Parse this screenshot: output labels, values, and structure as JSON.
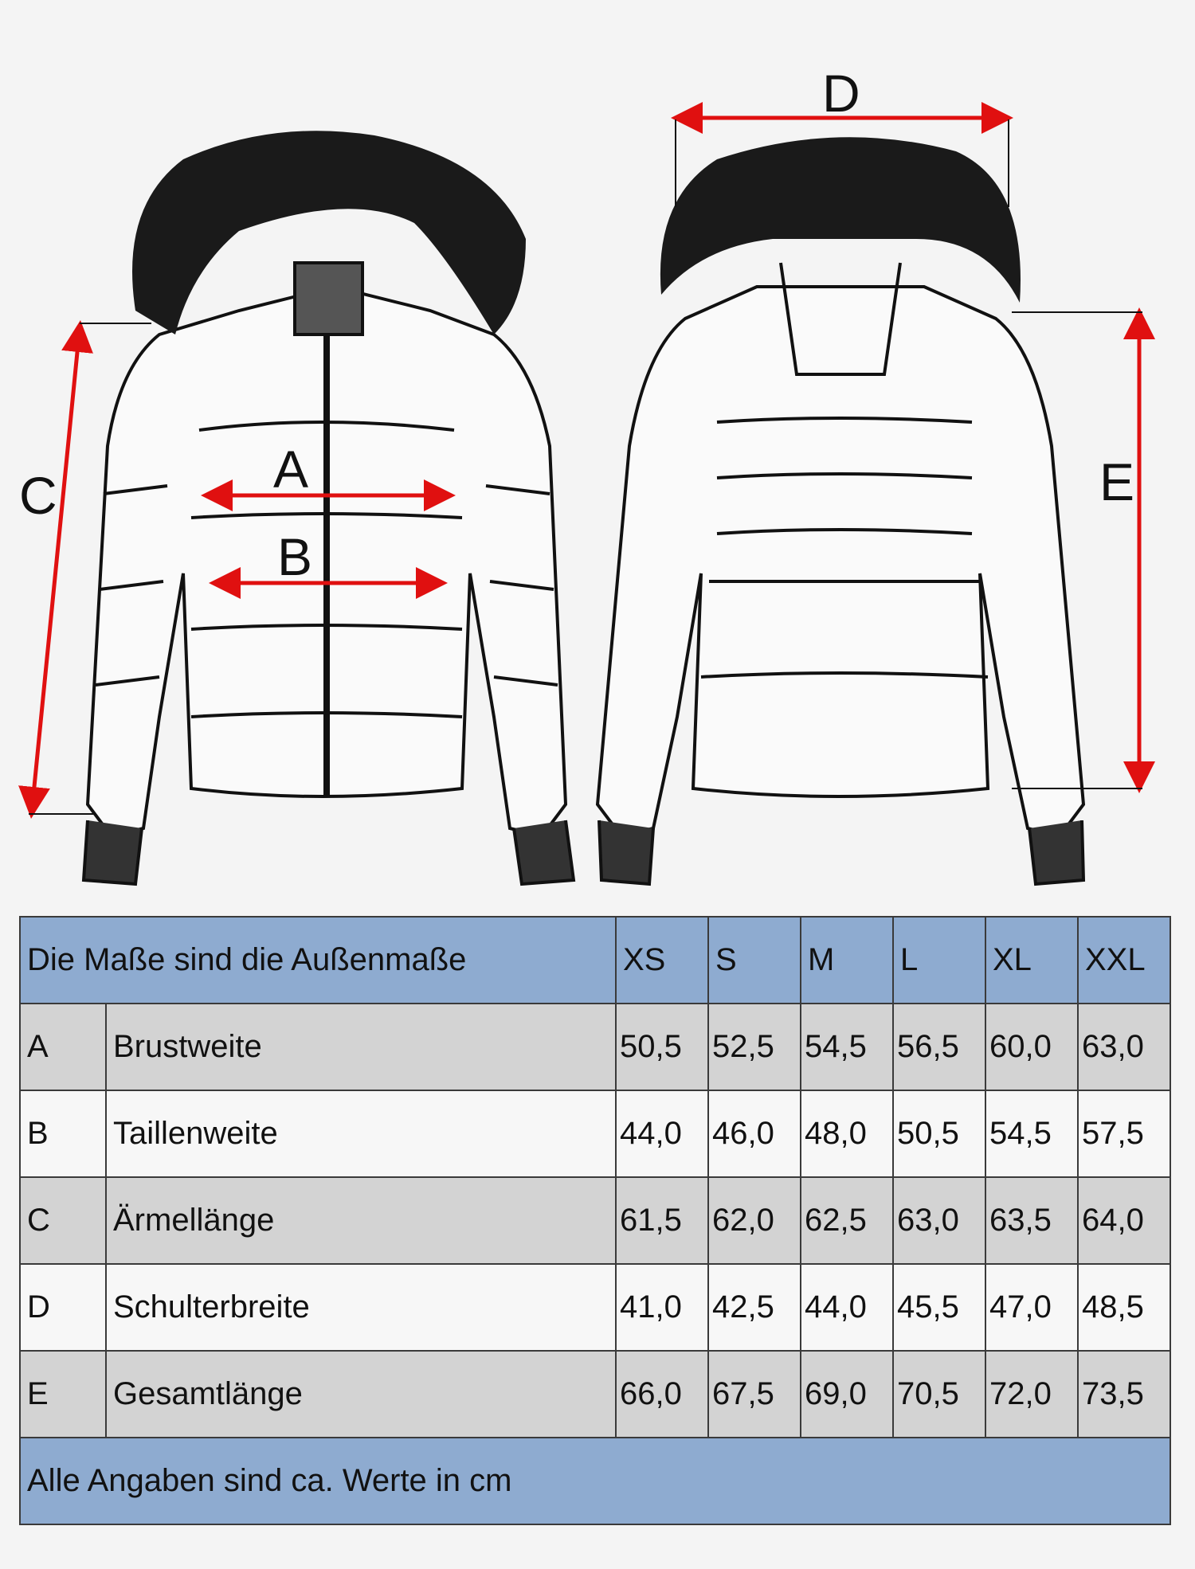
{
  "diagram": {
    "labels": [
      "A",
      "B",
      "C",
      "D",
      "E"
    ],
    "arrow_color": "#e01010"
  },
  "table": {
    "header": "Die Maße sind die Außenmaße",
    "sizes": [
      "XS",
      "S",
      "M",
      "L",
      "XL",
      "XXL"
    ],
    "rows": [
      {
        "key": "A",
        "name": "Brustweite",
        "values": [
          "50,5",
          "52,5",
          "54,5",
          "56,5",
          "60,0",
          "63,0"
        ]
      },
      {
        "key": "B",
        "name": "Taillenweite",
        "values": [
          "44,0",
          "46,0",
          "48,0",
          "50,5",
          "54,5",
          "57,5"
        ]
      },
      {
        "key": "C",
        "name": "Ärmellänge",
        "values": [
          "61,5",
          "62,0",
          "62,5",
          "63,0",
          "63,5",
          "64,0"
        ]
      },
      {
        "key": "D",
        "name": "Schulterbreite",
        "values": [
          "41,0",
          "42,5",
          "44,0",
          "45,5",
          "47,0",
          "48,5"
        ]
      },
      {
        "key": "E",
        "name": "Gesamtlänge",
        "values": [
          "66,0",
          "67,5",
          "69,0",
          "70,5",
          "72,0",
          "73,5"
        ]
      }
    ],
    "footer": "Alle Angaben sind ca. Werte in cm",
    "colors": {
      "header": "#8eabd0",
      "gray_row": "#d3d3d3",
      "white_row": "#f7f7f7"
    }
  }
}
